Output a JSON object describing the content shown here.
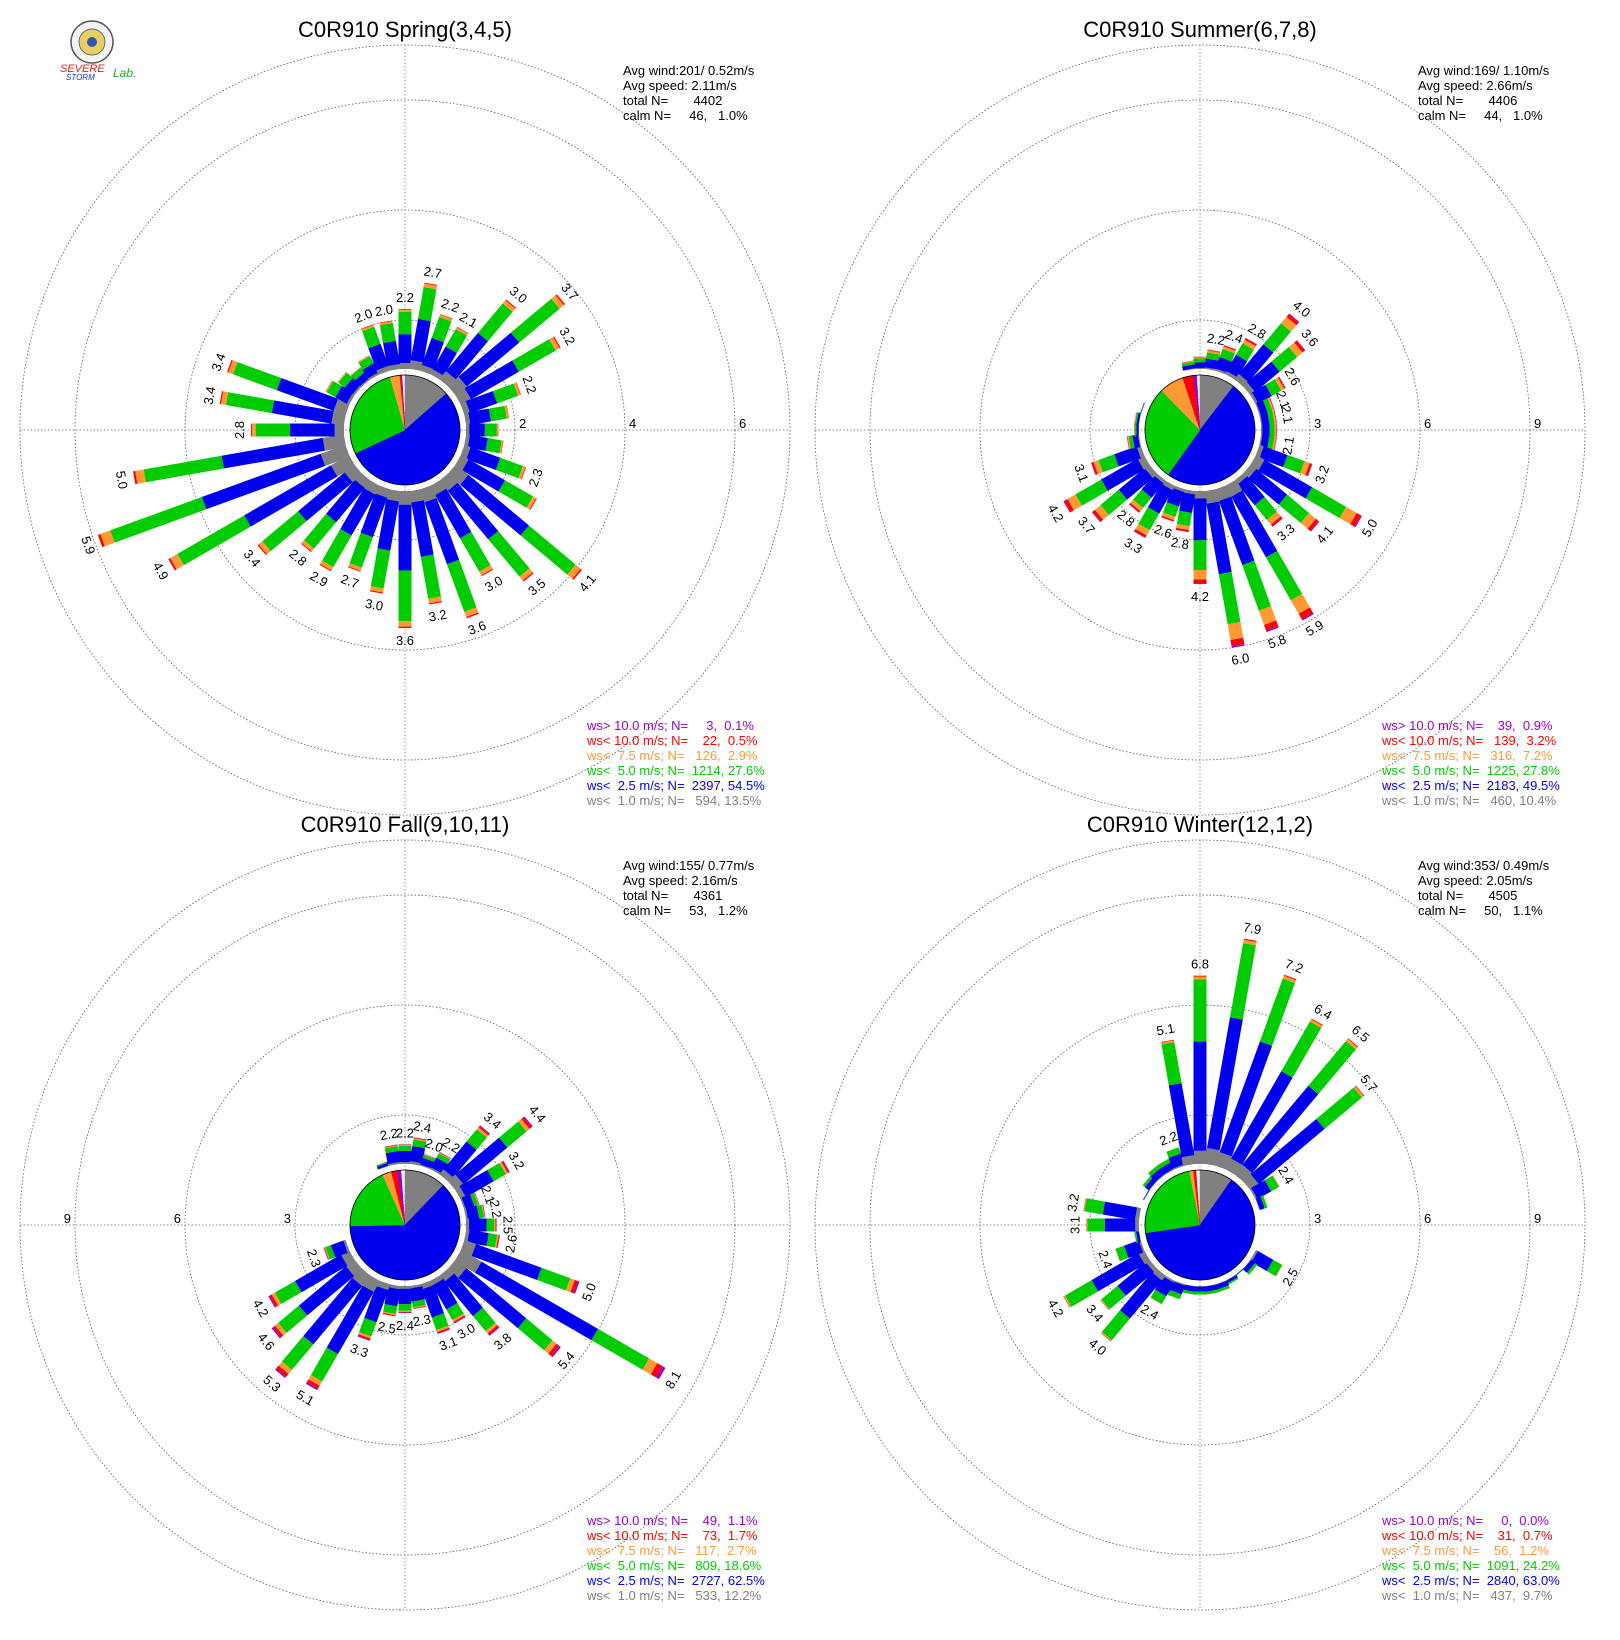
{
  "logo": {
    "top_text": "SEVERE",
    "mid_text": "STORM",
    "lab_text": "Lab."
  },
  "colors": {
    "calm": "#ffffff",
    "lt1": "#808080",
    "lt2_5": "#0000ee",
    "lt5": "#00cc00",
    "lt7_5": "#ff9933",
    "lt10": "#ff0000",
    "gt10": "#9900cc"
  },
  "chart_data": [
    {
      "type": "wind_rose",
      "title": "C0R910 Spring(3,4,5)",
      "ring_labels": [
        "2",
        "4",
        "6"
      ],
      "rmax": 7,
      "stats": {
        "avg_wind": "Avg wind:201/ 0.52m/s",
        "avg_speed": "Avg speed: 2.11m/s",
        "total": "total N=       4402",
        "calm": "calm N=     46,   1.0%"
      },
      "legend": [
        {
          "text": "ws> 10.0 m/s; N=     3,  0.1%",
          "color": "#9900cc"
        },
        {
          "text": "ws< 10.0 m/s; N=    22,  0.5%",
          "color": "#ff0000"
        },
        {
          "text": "ws<  7.5 m/s; N=   126,  2.9%",
          "color": "#ff9933"
        },
        {
          "text": "ws<  5.0 m/s; N=  1214, 27.6%",
          "color": "#00cc00"
        },
        {
          "text": "ws<  2.5 m/s; N=  2397, 54.5%",
          "color": "#0000ee"
        },
        {
          "text": "ws<  1.0 m/s; N=   594, 13.5%",
          "color": "#808080"
        }
      ],
      "pie": [
        0.135,
        0.545,
        0.276,
        0.029,
        0.005,
        0.001
      ],
      "directions_deg": [
        0,
        10,
        20,
        30,
        40,
        50,
        60,
        70,
        80,
        90,
        100,
        110,
        120,
        130,
        140,
        150,
        160,
        170,
        180,
        190,
        200,
        210,
        220,
        230,
        240,
        250,
        260,
        270,
        280,
        290,
        300,
        310,
        320,
        330,
        340,
        350
      ],
      "totals": [
        2.2,
        2.7,
        2.2,
        2.1,
        3.0,
        3.7,
        3.2,
        2.2,
        1.9,
        1.7,
        1.8,
        2.3,
        2.7,
        4.1,
        3.5,
        3.0,
        3.6,
        3.2,
        3.6,
        3.0,
        2.7,
        2.9,
        2.8,
        3.4,
        4.9,
        5.9,
        5.0,
        2.8,
        3.4,
        3.4,
        1.6,
        1.5,
        1.4,
        1.5,
        2.0,
        2.0
      ],
      "labels": [
        "2.2",
        "2.7",
        "2.2",
        "2.1",
        "3.0",
        "3.7",
        "3.2",
        "2.2",
        "",
        "",
        "",
        "2.3",
        "",
        "4.1",
        "3.5",
        "3.0",
        "3.6",
        "3.2",
        "3.6",
        "3.0",
        "2.7",
        "2.9",
        "2.8",
        "3.4",
        "4.9",
        "5.9",
        "5.0",
        "2.8",
        "3.4",
        "3.4",
        "",
        "",
        "",
        "",
        "2.0",
        "2.0"
      ]
    },
    {
      "type": "wind_rose",
      "title": "C0R910 Summer(6,7,8)",
      "ring_labels": [
        "3",
        "6",
        "9"
      ],
      "rmax": 10.5,
      "stats": {
        "avg_wind": "Avg wind:169/ 1.10m/s",
        "avg_speed": "Avg speed: 2.66m/s",
        "total": "total N=       4406",
        "calm": "calm N=     44,   1.0%"
      },
      "legend": [
        {
          "text": "ws> 10.0 m/s; N=    39,  0.9%",
          "color": "#9900cc"
        },
        {
          "text": "ws< 10.0 m/s; N=   139,  3.2%",
          "color": "#ff0000"
        },
        {
          "text": "ws<  7.5 m/s; N=   316,  7.2%",
          "color": "#ff9933"
        },
        {
          "text": "ws<  5.0 m/s; N=  1225, 27.8%",
          "color": "#00cc00"
        },
        {
          "text": "ws<  2.5 m/s; N=  2183, 49.5%",
          "color": "#0000ee"
        },
        {
          "text": "ws<  1.0 m/s; N=   460, 10.4%",
          "color": "#808080"
        }
      ],
      "pie": [
        0.104,
        0.495,
        0.278,
        0.072,
        0.032,
        0.009
      ],
      "directions_deg": [
        0,
        10,
        20,
        30,
        40,
        50,
        60,
        70,
        80,
        90,
        100,
        110,
        120,
        130,
        140,
        150,
        160,
        170,
        180,
        190,
        200,
        210,
        220,
        230,
        240,
        250,
        260,
        270,
        280,
        290,
        300,
        310,
        320,
        330,
        340,
        350
      ],
      "totals": [
        2.0,
        2.2,
        2.4,
        2.8,
        4.0,
        3.6,
        2.6,
        2.1,
        2.1,
        2.1,
        2.1,
        3.2,
        5.0,
        4.1,
        3.3,
        5.9,
        5.8,
        6.0,
        4.2,
        2.8,
        2.6,
        3.3,
        2.8,
        3.7,
        4.2,
        3.1,
        2.0,
        1.8,
        1.8,
        1.7,
        1.6,
        1.5,
        1.4,
        1.5,
        1.6,
        1.9
      ],
      "labels": [
        "",
        "2.2",
        "2.4",
        "2.8",
        "4.0",
        "3.6",
        "2.6",
        "2.1",
        "2.1",
        "",
        "2.1",
        "3.2",
        "5.0",
        "4.1",
        "3.3",
        "5.9",
        "5.8",
        "6.0",
        "4.2",
        "2.8",
        "2.6",
        "3.3",
        "2.8",
        "3.7",
        "4.2",
        "3.1",
        "",
        "",
        "",
        "",
        "",
        "",
        "",
        "",
        "",
        ""
      ]
    },
    {
      "type": "wind_rose",
      "title": "C0R910 Fall(9,10,11)",
      "ring_labels": [
        "3",
        "6",
        "9"
      ],
      "rmax": 10.5,
      "stats": {
        "avg_wind": "Avg wind:155/ 0.77m/s",
        "avg_speed": "Avg speed: 2.16m/s",
        "total": "total N=       4361",
        "calm": "calm N=     53,   1.2%"
      },
      "legend": [
        {
          "text": "ws> 10.0 m/s; N=    49,  1.1%",
          "color": "#9900cc"
        },
        {
          "text": "ws< 10.0 m/s; N=    73,  1.7%",
          "color": "#ff0000"
        },
        {
          "text": "ws<  7.5 m/s; N=   117,  2.7%",
          "color": "#ff9933"
        },
        {
          "text": "ws<  5.0 m/s; N=   809, 18.6%",
          "color": "#00cc00"
        },
        {
          "text": "ws<  2.5 m/s; N=  2727, 62.5%",
          "color": "#0000ee"
        },
        {
          "text": "ws<  1.0 m/s; N=   533, 12.2%",
          "color": "#808080"
        }
      ],
      "pie": [
        0.122,
        0.625,
        0.186,
        0.027,
        0.017,
        0.011
      ],
      "directions_deg": [
        0,
        10,
        20,
        30,
        40,
        50,
        60,
        70,
        80,
        90,
        100,
        110,
        120,
        130,
        140,
        150,
        160,
        170,
        180,
        190,
        200,
        210,
        220,
        230,
        240,
        250,
        260,
        270,
        280,
        290,
        300,
        310,
        320,
        330,
        340,
        350
      ],
      "totals": [
        2.2,
        2.4,
        2.0,
        2.2,
        3.4,
        4.4,
        3.2,
        2.1,
        2.2,
        2.5,
        2.6,
        5.0,
        8.1,
        5.4,
        3.8,
        3.0,
        3.1,
        2.3,
        2.4,
        2.5,
        3.3,
        5.1,
        5.3,
        4.6,
        4.2,
        2.3,
        1.6,
        1.5,
        1.6,
        1.4,
        1.5,
        1.4,
        1.3,
        1.6,
        1.8,
        2.2
      ],
      "labels": [
        "2.2",
        "2.4",
        "2.0",
        "2.2",
        "3.4",
        "4.4",
        "3.2",
        "2.1",
        "2.2",
        "2.5",
        "2.6",
        "5.0",
        "8.1",
        "5.4",
        "3.8",
        "3.0",
        "3.1",
        "2.3",
        "2.4",
        "2.5",
        "3.3",
        "5.1",
        "5.3",
        "4.6",
        "4.2",
        "2.3",
        "",
        "",
        "",
        "",
        "",
        "",
        "",
        "",
        "",
        "2.2"
      ]
    },
    {
      "type": "wind_rose",
      "title": "C0R910 Winter(12,1,2)",
      "ring_labels": [
        "3",
        "6",
        "9"
      ],
      "rmax": 10.5,
      "stats": {
        "avg_wind": "Avg wind:353/ 0.49m/s",
        "avg_speed": "Avg speed: 2.05m/s",
        "total": "total N=       4505",
        "calm": "calm N=     50,   1.1%"
      },
      "legend": [
        {
          "text": "ws> 10.0 m/s; N=     0,  0.0%",
          "color": "#9900cc"
        },
        {
          "text": "ws< 10.0 m/s; N=    31,  0.7%",
          "color": "#ff0000"
        },
        {
          "text": "ws<  7.5 m/s; N=    56,  1.2%",
          "color": "#ff9933"
        },
        {
          "text": "ws<  5.0 m/s; N=  1091, 24.2%",
          "color": "#00cc00"
        },
        {
          "text": "ws<  2.5 m/s; N=  2840, 63.0%",
          "color": "#0000ee"
        },
        {
          "text": "ws<  1.0 m/s; N=   437,  9.7%",
          "color": "#808080"
        }
      ],
      "pie": [
        0.097,
        0.63,
        0.242,
        0.012,
        0.007,
        0.0
      ],
      "directions_deg": [
        0,
        10,
        20,
        30,
        40,
        50,
        60,
        70,
        80,
        90,
        100,
        110,
        120,
        130,
        140,
        150,
        160,
        170,
        180,
        190,
        200,
        210,
        220,
        230,
        240,
        250,
        260,
        270,
        280,
        290,
        300,
        310,
        320,
        330,
        340,
        350
      ],
      "totals": [
        6.8,
        7.9,
        7.2,
        6.4,
        6.5,
        5.7,
        2.4,
        1.9,
        1.6,
        1.4,
        1.5,
        1.6,
        2.5,
        1.9,
        1.7,
        1.8,
        1.9,
        1.9,
        1.9,
        1.9,
        2.1,
        2.4,
        4.0,
        3.4,
        4.2,
        2.4,
        1.8,
        3.1,
        3.2,
        1.5,
        1.7,
        1.9,
        2.0,
        2.0,
        2.2,
        5.1
      ],
      "labels": [
        "6.8",
        "7.9",
        "7.2",
        "6.4",
        "6.5",
        "5.7",
        "2.4",
        "",
        "",
        "",
        "",
        "",
        "2.5",
        "",
        "",
        "",
        "",
        "",
        "",
        "",
        "",
        "2.4",
        "4.0",
        "3.4",
        "4.2",
        "2.4",
        "",
        "3.1",
        "3.2",
        "",
        "",
        "",
        "",
        "",
        "2.2",
        "5.1"
      ]
    }
  ]
}
